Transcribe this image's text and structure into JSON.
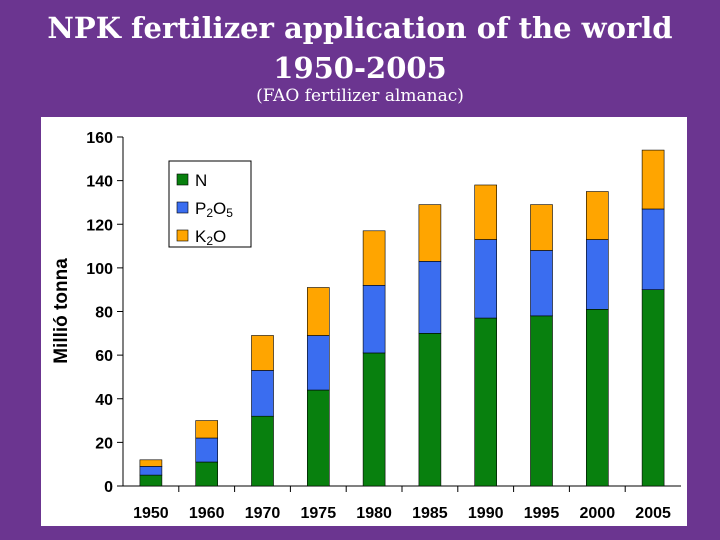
{
  "slide": {
    "title_line1": "NPK fertilizer application of the world",
    "title_line2": "1950-2005",
    "subtitle": "(FAO fertilizer almanac)"
  },
  "colors": {
    "background": "#6b3590",
    "N": "#08800e",
    "P2O5": "#3a6df0",
    "K2O": "#ffa500"
  },
  "chart_data": {
    "type": "bar",
    "stacked": true,
    "title": "",
    "xlabel": "",
    "ylabel": "Millió tonna",
    "ylim": [
      0,
      160
    ],
    "yticks": [
      0,
      20,
      40,
      60,
      80,
      100,
      120,
      140,
      160
    ],
    "grid": false,
    "legend_position": "top-left",
    "categories": [
      "1950",
      "1960",
      "1970",
      "1975",
      "1980",
      "1985",
      "1990",
      "1995",
      "2000",
      "2005"
    ],
    "series": [
      {
        "name": "N",
        "color": "#08800e",
        "values": [
          5,
          11,
          32,
          44,
          61,
          70,
          77,
          78,
          81,
          90
        ]
      },
      {
        "name": "P2O5",
        "color": "#3a6df0",
        "values": [
          4,
          11,
          21,
          25,
          31,
          33,
          36,
          30,
          32,
          37
        ]
      },
      {
        "name": "K2O",
        "color": "#ffa500",
        "values": [
          3,
          8,
          16,
          22,
          25,
          26,
          25,
          21,
          22,
          27
        ]
      }
    ]
  }
}
